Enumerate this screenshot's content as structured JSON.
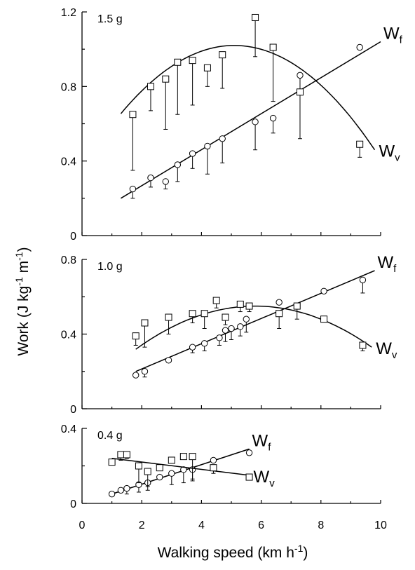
{
  "x_axis": {
    "label": "Walking speed (km h",
    "label_sup": "-1",
    "label_end": ")",
    "ticks": [
      "0",
      "2",
      "4",
      "6",
      "8",
      "10"
    ]
  },
  "y_axis": {
    "label": "Work (J kg",
    "label_sup1": "-1",
    "label_mid": " m",
    "label_sup2": "-1",
    "label_end": ")"
  },
  "chart_data": [
    {
      "type": "scatter",
      "panel": "1.5 g",
      "xlim": [
        0,
        10
      ],
      "ylim": [
        0,
        1.2
      ],
      "yticks": [
        "0",
        "0.4",
        "0.8",
        "1.2"
      ],
      "series": [
        {
          "name": "Wf",
          "marker": "circle",
          "x": [
            1.7,
            2.3,
            2.8,
            3.2,
            3.7,
            4.2,
            4.7,
            5.8,
            6.4,
            7.3,
            9.3
          ],
          "y": [
            0.25,
            0.31,
            0.29,
            0.38,
            0.44,
            0.48,
            0.52,
            0.61,
            0.63,
            0.86,
            1.01
          ],
          "err_low": [
            0.05,
            0.05,
            0.04,
            0.09,
            0.08,
            0.15,
            0.13,
            0.15,
            0.08,
            0.08,
            0.0
          ],
          "err_high": [
            0.0,
            0.0,
            0.0,
            0.0,
            0.0,
            0.0,
            0.0,
            0.0,
            0.0,
            0.0,
            0.0
          ],
          "fit": {
            "kind": "linear",
            "x_range": [
              1.3,
              10.0
            ],
            "y_range": [
              0.2,
              1.04
            ]
          }
        },
        {
          "name": "Wv",
          "marker": "square",
          "x": [
            1.7,
            2.3,
            2.8,
            3.2,
            3.7,
            4.2,
            4.7,
            5.8,
            6.4,
            7.3,
            9.3
          ],
          "y": [
            0.65,
            0.8,
            0.84,
            0.93,
            0.94,
            0.9,
            0.97,
            1.17,
            1.01,
            0.77,
            0.49
          ],
          "err_low": [
            0.3,
            0.13,
            0.27,
            0.28,
            0.24,
            0.1,
            0.18,
            0.21,
            0.29,
            0.25,
            0.07
          ],
          "err_high": [
            0.0,
            0.0,
            0.0,
            0.0,
            0.0,
            0.0,
            0.0,
            0.0,
            0.0,
            0.0,
            0.0
          ],
          "fit": {
            "kind": "quadratic",
            "x_range": [
              1.3,
              9.8
            ],
            "peak_x": 5.1,
            "peak_y": 1.02,
            "end_y": 0.46
          }
        }
      ]
    },
    {
      "type": "scatter",
      "panel": "1.0 g",
      "xlim": [
        0,
        10
      ],
      "ylim": [
        0,
        0.8
      ],
      "yticks": [
        "0",
        "0.4",
        "0.8"
      ],
      "series": [
        {
          "name": "Wf",
          "marker": "circle",
          "x": [
            1.8,
            2.1,
            2.9,
            3.7,
            4.1,
            4.6,
            4.8,
            5.0,
            5.3,
            5.5,
            6.6,
            8.1,
            9.4
          ],
          "y": [
            0.18,
            0.2,
            0.26,
            0.33,
            0.35,
            0.38,
            0.42,
            0.43,
            0.44,
            0.48,
            0.57,
            0.63,
            0.69
          ],
          "err_low": [
            0.0,
            0.03,
            0.0,
            0.03,
            0.04,
            0.04,
            0.06,
            0.06,
            0.05,
            0.07,
            0.0,
            0.0,
            0.07
          ],
          "err_high": [
            0.0,
            0.0,
            0.0,
            0.0,
            0.0,
            0.0,
            0.0,
            0.0,
            0.0,
            0.0,
            0.0,
            0.0,
            0.0
          ],
          "fit": {
            "kind": "linear",
            "x_range": [
              1.8,
              9.8
            ],
            "y_range": [
              0.2,
              0.74
            ]
          }
        },
        {
          "name": "Wv",
          "marker": "square",
          "x": [
            1.8,
            2.1,
            2.9,
            3.7,
            4.1,
            4.5,
            4.8,
            5.3,
            5.6,
            6.6,
            7.2,
            8.1,
            9.4
          ],
          "y": [
            0.39,
            0.46,
            0.49,
            0.51,
            0.51,
            0.58,
            0.49,
            0.56,
            0.55,
            0.51,
            0.55,
            0.48,
            0.34
          ],
          "err_low": [
            0.05,
            0.13,
            0.09,
            0.05,
            0.08,
            0.04,
            0.04,
            0.04,
            0.03,
            0.08,
            0.07,
            0.0,
            0.03
          ],
          "err_high": [
            0.0,
            0.0,
            0.0,
            0.0,
            0.0,
            0.0,
            0.0,
            0.0,
            0.0,
            0.0,
            0.0,
            0.0,
            0.0
          ],
          "fit": {
            "kind": "quadratic",
            "x_range": [
              1.8,
              9.7
            ],
            "peak_x": 5.8,
            "peak_y": 0.55,
            "end_y": 0.33
          }
        }
      ]
    },
    {
      "type": "scatter",
      "panel": "0.4 g",
      "xlim": [
        0,
        10
      ],
      "ylim": [
        0,
        0.4
      ],
      "yticks": [
        "0",
        "0.4"
      ],
      "series": [
        {
          "name": "Wf",
          "marker": "circle",
          "x": [
            1.0,
            1.3,
            1.5,
            1.9,
            2.2,
            2.6,
            3.0,
            3.4,
            3.7,
            4.4,
            5.6
          ],
          "y": [
            0.05,
            0.07,
            0.08,
            0.1,
            0.11,
            0.14,
            0.16,
            0.18,
            0.18,
            0.23,
            0.27
          ],
          "err_low": [
            0.0,
            0.0,
            0.03,
            0.04,
            0.04,
            0.0,
            0.06,
            0.07,
            0.06,
            0.0,
            0.0
          ],
          "err_high": [
            0.0,
            0.0,
            0.0,
            0.0,
            0.0,
            0.0,
            0.0,
            0.0,
            0.0,
            0.0,
            0.0
          ],
          "fit": {
            "kind": "linear",
            "x_range": [
              1.0,
              5.6
            ],
            "y_range": [
              0.05,
              0.29
            ]
          }
        },
        {
          "name": "Wv",
          "marker": "square",
          "x": [
            1.0,
            1.3,
            1.5,
            1.9,
            2.2,
            2.6,
            3.0,
            3.4,
            3.7,
            4.4,
            5.6
          ],
          "y": [
            0.22,
            0.26,
            0.26,
            0.2,
            0.17,
            0.19,
            0.23,
            0.25,
            0.25,
            0.19,
            0.14
          ],
          "err_low": [
            0.0,
            0.03,
            0.02,
            0.09,
            0.08,
            0.0,
            0.0,
            0.0,
            0.12,
            0.03,
            0.0
          ],
          "err_high": [
            0.0,
            0.0,
            0.0,
            0.0,
            0.0,
            0.0,
            0.0,
            0.0,
            0.0,
            0.0,
            0.0
          ],
          "fit": {
            "kind": "linear",
            "x_range": [
              1.0,
              5.6
            ],
            "y_range": [
              0.24,
              0.15
            ]
          }
        }
      ]
    }
  ]
}
